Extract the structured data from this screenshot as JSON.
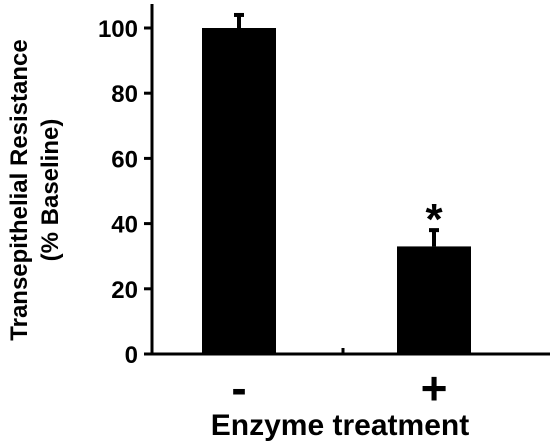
{
  "chart_data": {
    "type": "bar",
    "categories": [
      "-",
      "+"
    ],
    "values": [
      100,
      33
    ],
    "errors": [
      4,
      5
    ],
    "annotations": [
      "",
      "*"
    ],
    "ylabel_line1": "Transepithelial Resistance",
    "ylabel_line2": "(% Baseline)",
    "xlabel": "Enzyme treatment",
    "ylim": [
      0,
      105
    ],
    "yticks": [
      0,
      20,
      40,
      60,
      80,
      100
    ],
    "bar_color": "#000000",
    "grid": false,
    "legend": "none"
  }
}
